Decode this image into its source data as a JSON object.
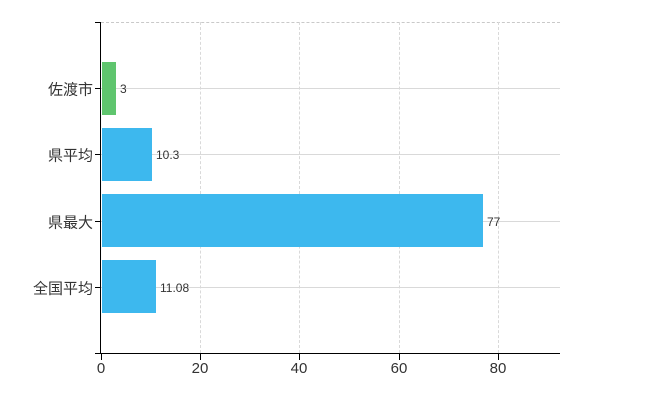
{
  "chart_data": {
    "type": "bar",
    "orientation": "horizontal",
    "title": "",
    "xlabel": "",
    "ylabel": "",
    "categories": [
      "佐渡市",
      "県平均",
      "県最大",
      "全国平均"
    ],
    "values": [
      3,
      10.3,
      77,
      11.08
    ],
    "value_labels": [
      "3",
      "10.3",
      "77",
      "11.08"
    ],
    "x_ticks": [
      0,
      20,
      40,
      60,
      80
    ],
    "x_tick_labels": [
      "0",
      "20",
      "40",
      "60",
      "80"
    ],
    "xlim": [
      0,
      92.5
    ],
    "grid": true,
    "legend": false,
    "series": [
      {
        "name": "value",
        "values": [
          3,
          10.3,
          77,
          11.08
        ]
      }
    ]
  },
  "colors": {
    "background": "#ffffff",
    "bar_green": "#5fc56e",
    "bar_blue": "#3db8ee",
    "bar_colors": [
      "#5fc56e",
      "#3db8ee",
      "#3db8ee",
      "#3db8ee"
    ],
    "grid": "#d9d9d9",
    "plot_border": "#c9c9c9",
    "axis": "#000000",
    "text": "#333333"
  }
}
